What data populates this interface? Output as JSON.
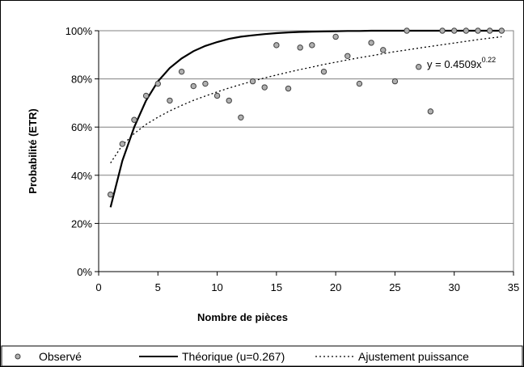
{
  "chart_data": {
    "type": "scatter",
    "xlabel": "Nombre de pièces",
    "ylabel": "Probabilité (ETR)",
    "xlim": [
      0,
      35
    ],
    "ylim": [
      0,
      1
    ],
    "x_ticks": [
      "0",
      "5",
      "10",
      "15",
      "20",
      "25",
      "30",
      "35"
    ],
    "y_ticks": [
      "0%",
      "20%",
      "40%",
      "60%",
      "80%",
      "100%"
    ],
    "grid": "horizontal",
    "legend_position": "bottom",
    "annotation": {
      "text": "y = 0.4509x",
      "exponent": "0.22"
    },
    "series": [
      {
        "name": "Observé",
        "kind": "markers",
        "x": [
          1,
          2,
          3,
          4,
          5,
          6,
          7,
          8,
          9,
          10,
          11,
          12,
          13,
          14,
          15,
          16,
          17,
          18,
          19,
          20,
          21,
          22,
          23,
          24,
          25,
          26,
          27,
          28,
          29,
          30,
          31,
          32,
          33,
          34
        ],
        "y": [
          0.32,
          0.53,
          0.63,
          0.73,
          0.78,
          0.71,
          0.83,
          0.77,
          0.78,
          0.73,
          0.71,
          0.64,
          0.79,
          0.765,
          0.94,
          0.76,
          0.93,
          0.94,
          0.83,
          0.975,
          0.895,
          0.78,
          0.95,
          0.92,
          0.79,
          1.0,
          0.85,
          0.665,
          1.0,
          1.0,
          1.0,
          1.0,
          1.0,
          1.0
        ]
      },
      {
        "name": "Théorique (u=0.267)",
        "kind": "solid",
        "x": [
          1,
          2,
          3,
          4,
          5,
          6,
          7,
          8,
          9,
          10,
          11,
          12,
          13,
          14,
          15,
          16,
          17,
          18,
          19,
          20,
          21,
          22,
          23,
          24,
          25,
          26,
          27,
          28,
          29,
          30,
          31,
          32,
          33,
          34
        ],
        "y": [
          0.267,
          0.46,
          0.6,
          0.71,
          0.79,
          0.845,
          0.885,
          0.915,
          0.937,
          0.953,
          0.966,
          0.975,
          0.981,
          0.986,
          0.99,
          0.993,
          0.995,
          0.996,
          0.997,
          0.998,
          0.999,
          0.999,
          1,
          1,
          1,
          1,
          1,
          1,
          1,
          1,
          1,
          1,
          1,
          1
        ]
      },
      {
        "name": "Ajustement puissance",
        "kind": "dotted",
        "x": [
          1,
          2,
          3,
          4,
          5,
          6,
          7,
          8,
          9,
          10,
          11,
          12,
          13,
          14,
          15,
          16,
          17,
          18,
          19,
          20,
          21,
          22,
          23,
          24,
          25,
          26,
          27,
          28,
          29,
          30,
          31,
          32,
          33,
          34
        ],
        "y": [
          0.451,
          0.525,
          0.573,
          0.611,
          0.641,
          0.667,
          0.69,
          0.711,
          0.729,
          0.746,
          0.762,
          0.777,
          0.791,
          0.804,
          0.816,
          0.828,
          0.839,
          0.849,
          0.86,
          0.869,
          0.879,
          0.888,
          0.896,
          0.905,
          0.913,
          0.92,
          0.928,
          0.935,
          0.942,
          0.949,
          0.956,
          0.963,
          0.969,
          0.975
        ]
      }
    ]
  }
}
